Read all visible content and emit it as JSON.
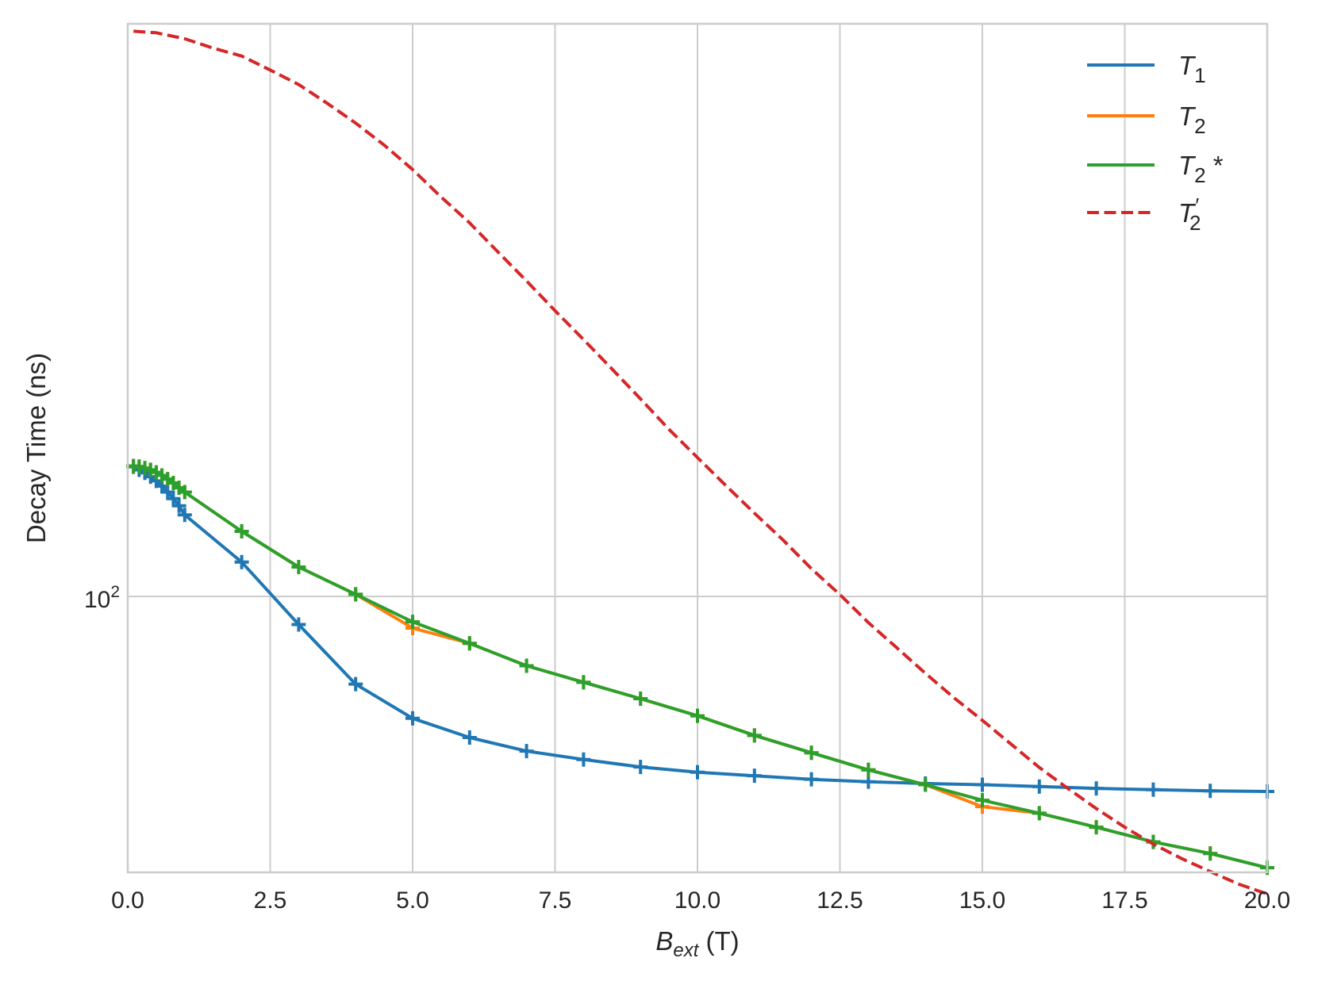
{
  "chart_data": {
    "type": "line",
    "xlabel": "B_ext (T)",
    "xlabel_parts": {
      "main": "B",
      "sub": "ext",
      "unit": " (T)"
    },
    "ylabel": "Decay Time (ns)",
    "xlim": [
      0,
      20
    ],
    "ylim": [
      46.5,
      490
    ],
    "yscale": "log",
    "grid": true,
    "legend_position": "top-right",
    "x_ticks": [
      "0.0",
      "2.5",
      "5.0",
      "7.5",
      "10.0",
      "12.5",
      "15.0",
      "17.5",
      "20.0"
    ],
    "y_ticks": [
      {
        "value": 100,
        "label_base": "10",
        "label_exp": "2"
      }
    ],
    "series": [
      {
        "name": "T_1",
        "legend_main": "T",
        "legend_sub": "1",
        "legend_suffix": "",
        "color": "#1f77b4",
        "style": "solid",
        "markers": true,
        "x": [
          0.1,
          0.2,
          0.3,
          0.4,
          0.5,
          0.6,
          0.7,
          0.8,
          0.9,
          1.0,
          2,
          3,
          4,
          5,
          6,
          7,
          8,
          9,
          10,
          11,
          12,
          13,
          14,
          15,
          16,
          17,
          18,
          19,
          20
        ],
        "y": [
          143.3,
          142.1,
          140.9,
          139.4,
          137.8,
          135.8,
          133.6,
          131.2,
          128.6,
          125.4,
          110.0,
          92.5,
          78.4,
          71.3,
          67.6,
          65.1,
          63.6,
          62.3,
          61.4,
          60.8,
          60.2,
          59.8,
          59.5,
          59.3,
          59.0,
          58.7,
          58.5,
          58.3,
          58.2
        ]
      },
      {
        "name": "T_2",
        "legend_main": "T",
        "legend_sub": "2",
        "legend_suffix": "",
        "color": "#ff7f0e",
        "style": "solid",
        "markers": true,
        "x": [
          0.1,
          0.2,
          0.3,
          0.4,
          0.5,
          0.6,
          0.7,
          0.8,
          0.9,
          1.0,
          2,
          3,
          4,
          5,
          6,
          7,
          8,
          9,
          10,
          11,
          12,
          13,
          14,
          15,
          16,
          17,
          18,
          19,
          20
        ],
        "y": [
          143.6,
          143.4,
          142.8,
          142.1,
          141.1,
          139.9,
          138.5,
          137.0,
          135.2,
          133.6,
          119.8,
          108.5,
          100.6,
          91.6,
          87.8,
          82.5,
          78.8,
          75.3,
          71.8,
          68.0,
          64.8,
          61.8,
          59.3,
          55.8,
          54.8,
          52.7,
          50.6,
          49.0,
          47.1
        ]
      },
      {
        "name": "T_2 *",
        "legend_main": "T",
        "legend_sub": "2",
        "legend_suffix": " *",
        "color": "#2ca02c",
        "style": "solid",
        "markers": true,
        "x": [
          0.1,
          0.2,
          0.3,
          0.4,
          0.5,
          0.6,
          0.7,
          0.8,
          0.9,
          1.0,
          2,
          3,
          4,
          5,
          6,
          7,
          8,
          9,
          10,
          11,
          12,
          13,
          14,
          15,
          16,
          17,
          18,
          19,
          20
        ],
        "y": [
          143.6,
          143.4,
          142.8,
          142.1,
          141.1,
          139.9,
          138.5,
          137.0,
          135.2,
          133.6,
          119.8,
          108.5,
          100.6,
          93.2,
          87.8,
          82.5,
          78.8,
          75.3,
          71.8,
          68.0,
          64.8,
          61.8,
          59.3,
          56.8,
          54.8,
          52.7,
          50.6,
          49.0,
          47.1
        ]
      },
      {
        "name": "T_2'",
        "legend_main": "T",
        "legend_sub": "2",
        "legend_suffix": "",
        "legend_prime": "′",
        "color": "#d62728",
        "style": "dashed",
        "markers": false,
        "x": [
          0.1,
          0.5,
          1,
          1.5,
          2,
          2.5,
          3,
          3.5,
          4,
          4.5,
          5,
          5.5,
          6,
          6.5,
          7,
          7.5,
          8,
          8.5,
          9,
          9.5,
          10,
          10.5,
          11,
          11.5,
          12,
          12.5,
          13,
          13.5,
          14,
          14.5,
          15,
          15.5,
          16,
          16.5,
          17,
          17.5,
          18,
          18.5,
          19,
          19.5,
          20
        ],
        "y": [
          480,
          478,
          470,
          458,
          448,
          431,
          414,
          393,
          372,
          350,
          327,
          303,
          282,
          260,
          240,
          221,
          204,
          188,
          173,
          159,
          147,
          136,
          126,
          117,
          108,
          100.5,
          93.0,
          86.7,
          80.8,
          75.5,
          70.9,
          66.4,
          62.2,
          58.7,
          55.5,
          52.7,
          50.3,
          48.3,
          46.6,
          45.0,
          43.8
        ]
      }
    ]
  }
}
